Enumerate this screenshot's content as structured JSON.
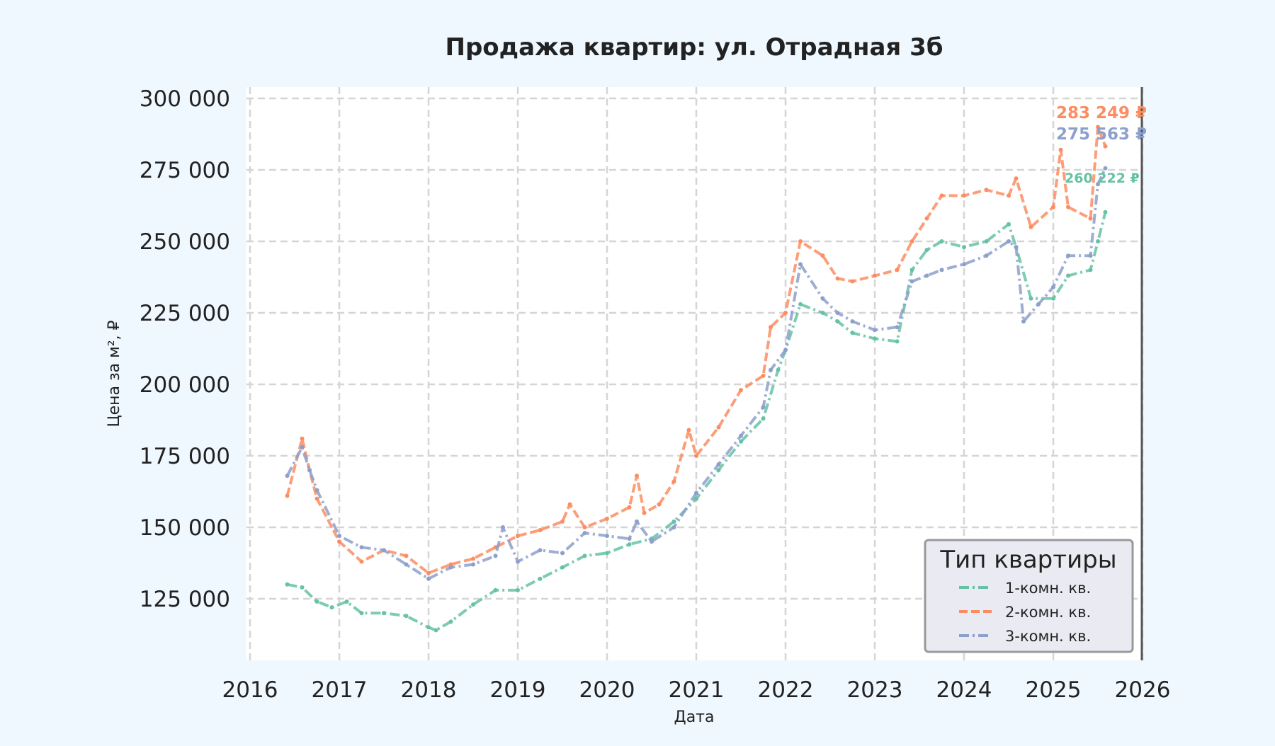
{
  "chart_data": {
    "type": "line",
    "title": "Продажа квартир: ул. Отрадная 3б",
    "xlabel": "Дата",
    "ylabel": "Цена за м², ₽",
    "xlim": [
      "2016",
      "2026"
    ],
    "ylim": [
      103500,
      304000
    ],
    "x_ticks": [
      "2016",
      "2017",
      "2018",
      "2019",
      "2020",
      "2021",
      "2022",
      "2023",
      "2024",
      "2025",
      "2026"
    ],
    "y_ticks": [
      125000,
      150000,
      175000,
      200000,
      225000,
      250000,
      275000,
      300000
    ],
    "y_tick_labels": [
      "125 000",
      "150 000",
      "175 000",
      "200 000",
      "225 000",
      "250 000",
      "275 000",
      "300 000"
    ],
    "grid": true,
    "legend": {
      "title": "Тип квартиры",
      "placement": "bottom-right"
    },
    "series": [
      {
        "name": "1-комн. кв.",
        "color": "#66c2a5",
        "style": "dash-dot",
        "end_label": "260 222 ₽",
        "points": [
          [
            "2016-06",
            130000
          ],
          [
            "2016-08",
            129000
          ],
          [
            "2016-10",
            124000
          ],
          [
            "2016-12",
            122000
          ],
          [
            "2017-02",
            124000
          ],
          [
            "2017-04",
            120000
          ],
          [
            "2017-07",
            120000
          ],
          [
            "2017-10",
            119000
          ],
          [
            "2018-01",
            115000
          ],
          [
            "2018-02",
            114000
          ],
          [
            "2018-04",
            117000
          ],
          [
            "2018-07",
            123000
          ],
          [
            "2018-10",
            128000
          ],
          [
            "2019-01",
            128000
          ],
          [
            "2019-04",
            132000
          ],
          [
            "2019-07",
            136000
          ],
          [
            "2019-10",
            140000
          ],
          [
            "2020-01",
            141000
          ],
          [
            "2020-04",
            144000
          ],
          [
            "2020-07",
            146000
          ],
          [
            "2020-10",
            152000
          ],
          [
            "2021-01",
            160000
          ],
          [
            "2021-04",
            170000
          ],
          [
            "2021-07",
            180000
          ],
          [
            "2021-10",
            188000
          ],
          [
            "2021-12",
            205000
          ],
          [
            "2022-01",
            212000
          ],
          [
            "2022-03",
            228000
          ],
          [
            "2022-06",
            225000
          ],
          [
            "2022-08",
            222000
          ],
          [
            "2022-10",
            218000
          ],
          [
            "2023-01",
            216000
          ],
          [
            "2023-04",
            215000
          ],
          [
            "2023-06",
            240000
          ],
          [
            "2023-08",
            247000
          ],
          [
            "2023-10",
            250000
          ],
          [
            "2024-01",
            248000
          ],
          [
            "2024-04",
            250000
          ],
          [
            "2024-07",
            256000
          ],
          [
            "2024-08",
            248000
          ],
          [
            "2024-10",
            230000
          ],
          [
            "2025-01",
            230000
          ],
          [
            "2025-03",
            238000
          ],
          [
            "2025-06",
            240000
          ],
          [
            "2025-07",
            250000
          ],
          [
            "2025-08",
            260222
          ]
        ]
      },
      {
        "name": "2-комн. кв.",
        "color": "#fc8d62",
        "style": "dashed",
        "end_label": "283 249 ₽",
        "points": [
          [
            "2016-06",
            161000
          ],
          [
            "2016-08",
            181000
          ],
          [
            "2016-09",
            170000
          ],
          [
            "2016-10",
            160000
          ],
          [
            "2017-01",
            145000
          ],
          [
            "2017-04",
            138000
          ],
          [
            "2017-07",
            142000
          ],
          [
            "2017-10",
            140000
          ],
          [
            "2018-01",
            134000
          ],
          [
            "2018-04",
            137000
          ],
          [
            "2018-07",
            139000
          ],
          [
            "2018-10",
            143000
          ],
          [
            "2019-01",
            147000
          ],
          [
            "2019-04",
            149000
          ],
          [
            "2019-07",
            152000
          ],
          [
            "2019-08",
            158000
          ],
          [
            "2019-10",
            150000
          ],
          [
            "2020-01",
            153000
          ],
          [
            "2020-04",
            157000
          ],
          [
            "2020-05",
            168000
          ],
          [
            "2020-06",
            155000
          ],
          [
            "2020-08",
            158000
          ],
          [
            "2020-10",
            166000
          ],
          [
            "2020-12",
            184000
          ],
          [
            "2021-01",
            175000
          ],
          [
            "2021-04",
            185000
          ],
          [
            "2021-07",
            198000
          ],
          [
            "2021-10",
            203000
          ],
          [
            "2021-11",
            220000
          ],
          [
            "2022-01",
            225000
          ],
          [
            "2022-03",
            250000
          ],
          [
            "2022-06",
            245000
          ],
          [
            "2022-08",
            237000
          ],
          [
            "2022-10",
            236000
          ],
          [
            "2023-01",
            238000
          ],
          [
            "2023-04",
            240000
          ],
          [
            "2023-06",
            250000
          ],
          [
            "2023-08",
            258000
          ],
          [
            "2023-10",
            266000
          ],
          [
            "2024-01",
            266000
          ],
          [
            "2024-04",
            268000
          ],
          [
            "2024-07",
            266000
          ],
          [
            "2024-08",
            272000
          ],
          [
            "2024-10",
            255000
          ],
          [
            "2025-01",
            262000
          ],
          [
            "2025-02",
            282000
          ],
          [
            "2025-03",
            262000
          ],
          [
            "2025-06",
            258000
          ],
          [
            "2025-07",
            290000
          ],
          [
            "2025-08",
            283249
          ]
        ]
      },
      {
        "name": "3-комн. кв.",
        "color": "#8da0cb",
        "style": "dash-dot",
        "end_label": "275 563 ₽",
        "points": [
          [
            "2016-06",
            168000
          ],
          [
            "2016-08",
            178000
          ],
          [
            "2016-09",
            170000
          ],
          [
            "2016-10",
            163000
          ],
          [
            "2017-01",
            147000
          ],
          [
            "2017-04",
            143000
          ],
          [
            "2017-07",
            142000
          ],
          [
            "2017-10",
            137000
          ],
          [
            "2018-01",
            132000
          ],
          [
            "2018-04",
            136000
          ],
          [
            "2018-07",
            137000
          ],
          [
            "2018-10",
            140000
          ],
          [
            "2018-11",
            150000
          ],
          [
            "2019-01",
            138000
          ],
          [
            "2019-04",
            142000
          ],
          [
            "2019-07",
            141000
          ],
          [
            "2019-10",
            148000
          ],
          [
            "2020-01",
            147000
          ],
          [
            "2020-04",
            146000
          ],
          [
            "2020-05",
            152000
          ],
          [
            "2020-07",
            145000
          ],
          [
            "2020-10",
            150000
          ],
          [
            "2021-01",
            162000
          ],
          [
            "2021-04",
            172000
          ],
          [
            "2021-07",
            182000
          ],
          [
            "2021-10",
            192000
          ],
          [
            "2021-11",
            205000
          ],
          [
            "2022-01",
            212000
          ],
          [
            "2022-03",
            242000
          ],
          [
            "2022-06",
            230000
          ],
          [
            "2022-08",
            225000
          ],
          [
            "2022-10",
            222000
          ],
          [
            "2023-01",
            219000
          ],
          [
            "2023-04",
            220000
          ],
          [
            "2023-06",
            236000
          ],
          [
            "2023-08",
            238000
          ],
          [
            "2023-10",
            240000
          ],
          [
            "2024-01",
            242000
          ],
          [
            "2024-04",
            245000
          ],
          [
            "2024-07",
            250000
          ],
          [
            "2024-08",
            248000
          ],
          [
            "2024-09",
            222000
          ],
          [
            "2024-11",
            228000
          ],
          [
            "2025-01",
            234000
          ],
          [
            "2025-03",
            245000
          ],
          [
            "2025-06",
            245000
          ],
          [
            "2025-07",
            270000
          ],
          [
            "2025-08",
            275563
          ]
        ]
      }
    ]
  }
}
